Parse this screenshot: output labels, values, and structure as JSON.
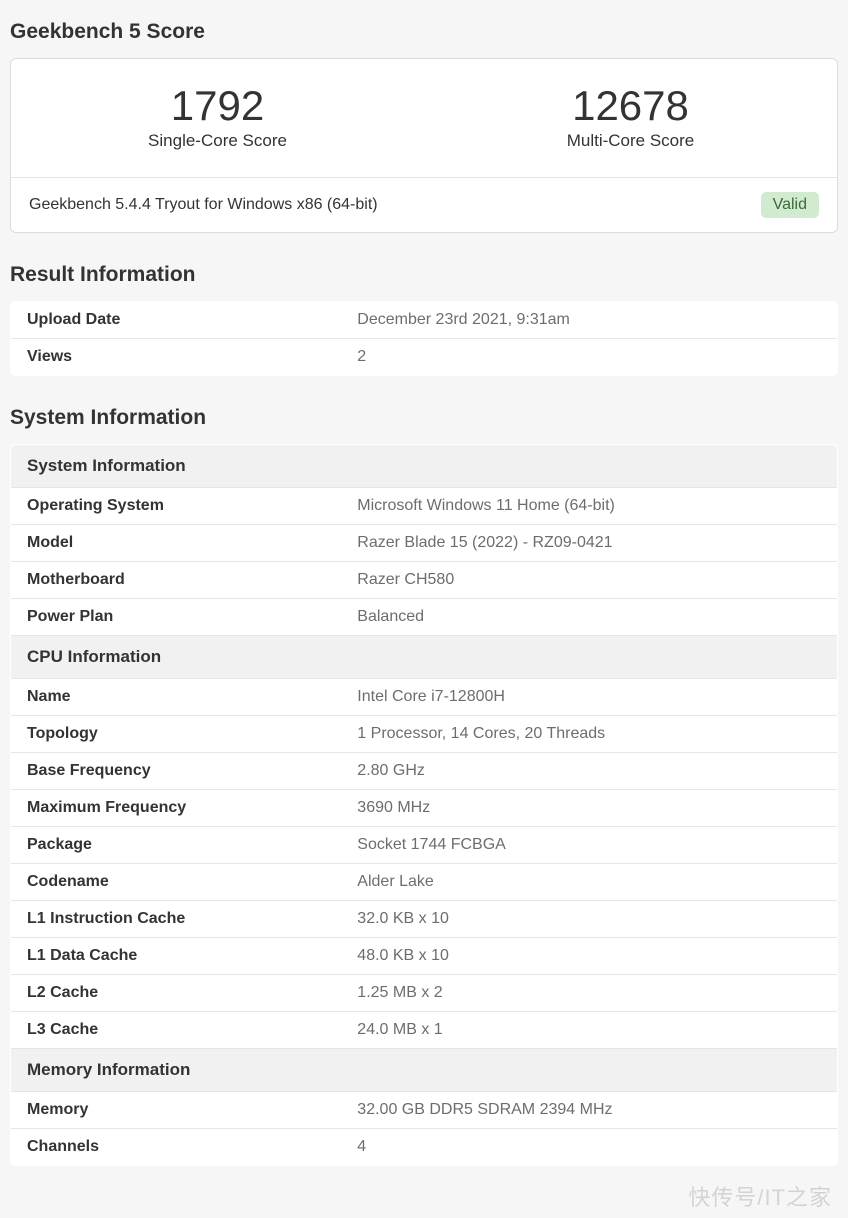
{
  "header": {
    "title": "Geekbench 5 Score"
  },
  "scores": {
    "single": {
      "value": "1792",
      "label": "Single-Core Score"
    },
    "multi": {
      "value": "12678",
      "label": "Multi-Core Score"
    }
  },
  "version": {
    "text": "Geekbench 5.4.4 Tryout for Windows x86 (64-bit)",
    "badge": "Valid",
    "badge_bg": "#d2eacf",
    "badge_fg": "#3a6b3a"
  },
  "result_info": {
    "title": "Result Information",
    "rows": [
      {
        "key": "Upload Date",
        "value": "December 23rd 2021, 9:31am"
      },
      {
        "key": "Views",
        "value": "2"
      }
    ]
  },
  "system_info": {
    "title": "System Information",
    "sections": [
      {
        "header": "System Information",
        "rows": [
          {
            "key": "Operating System",
            "value": "Microsoft Windows 11 Home (64-bit)"
          },
          {
            "key": "Model",
            "value": "Razer Blade 15 (2022) - RZ09-0421"
          },
          {
            "key": "Motherboard",
            "value": "Razer CH580"
          },
          {
            "key": "Power Plan",
            "value": "Balanced"
          }
        ]
      },
      {
        "header": "CPU Information",
        "rows": [
          {
            "key": "Name",
            "value": "Intel Core i7-12800H"
          },
          {
            "key": "Topology",
            "value": "1 Processor, 14 Cores, 20 Threads"
          },
          {
            "key": "Base Frequency",
            "value": "2.80 GHz"
          },
          {
            "key": "Maximum Frequency",
            "value": "3690 MHz"
          },
          {
            "key": "Package",
            "value": "Socket 1744 FCBGA"
          },
          {
            "key": "Codename",
            "value": "Alder Lake"
          },
          {
            "key": "L1 Instruction Cache",
            "value": "32.0 KB x 10"
          },
          {
            "key": "L1 Data Cache",
            "value": "48.0 KB x 10"
          },
          {
            "key": "L2 Cache",
            "value": "1.25 MB x 2"
          },
          {
            "key": "L3 Cache",
            "value": "24.0 MB x 1"
          }
        ]
      },
      {
        "header": "Memory Information",
        "rows": [
          {
            "key": "Memory",
            "value": "32.00 GB DDR5 SDRAM 2394 MHz"
          },
          {
            "key": "Channels",
            "value": "4"
          }
        ]
      }
    ]
  },
  "colors": {
    "page_bg": "#f6f6f6",
    "card_bg": "#ffffff",
    "border": "#dcdcdc",
    "row_border": "#e6e6e6",
    "header_bg": "#f1f1f1",
    "text": "#333333",
    "muted": "#6d6d6d"
  },
  "watermark": "快传号/IT之家"
}
